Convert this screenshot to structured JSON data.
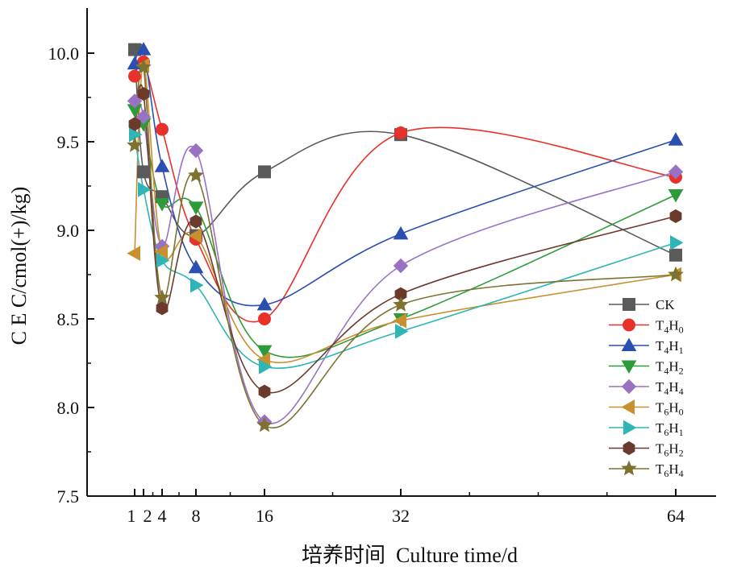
{
  "chart_data": {
    "type": "line",
    "xlabel": "培养时间  Culture time/d",
    "ylabel": "C E C/cmol(+)/kg)",
    "ylim": [
      7.5,
      10.25
    ],
    "yticks": [
      7.5,
      8.0,
      8.5,
      9.0,
      9.5,
      10.0
    ],
    "ytick_labels": [
      "7.5",
      "8.0",
      "8.5",
      "9.0",
      "9.5",
      "10.0"
    ],
    "xticks": [
      1,
      2,
      4,
      8,
      16,
      32,
      64
    ],
    "xtick_labels": [
      "1",
      "2",
      "4",
      "8",
      "16",
      "32",
      "64"
    ],
    "x": [
      1,
      2,
      4,
      8,
      16,
      32,
      64
    ],
    "legend_position": "bottom-right",
    "grid": false,
    "series": [
      {
        "name": "CK",
        "sub1": "",
        "sub2": "",
        "color": "#5a5a5a",
        "marker": "square",
        "values": [
          10.02,
          9.33,
          9.19,
          8.97,
          9.33,
          9.54,
          8.86
        ]
      },
      {
        "name": "T4H0",
        "base1": "T",
        "sub1": "4",
        "base2": "H",
        "sub2": "0",
        "color": "#e8312a",
        "marker": "circle",
        "values": [
          9.87,
          9.95,
          9.57,
          8.95,
          8.5,
          9.55,
          9.3
        ]
      },
      {
        "name": "T4H1",
        "base1": "T",
        "sub1": "4",
        "base2": "H",
        "sub2": "1",
        "color": "#2b4fb0",
        "marker": "triangle-up",
        "values": [
          9.94,
          10.02,
          9.36,
          8.79,
          8.58,
          8.98,
          9.51
        ]
      },
      {
        "name": "T4H2",
        "base1": "T",
        "sub1": "4",
        "base2": "H",
        "sub2": "2",
        "color": "#2e9b3a",
        "marker": "triangle-down",
        "values": [
          9.68,
          9.6,
          9.15,
          9.13,
          8.32,
          8.5,
          9.2
        ]
      },
      {
        "name": "T4H4",
        "base1": "T",
        "sub1": "4",
        "base2": "H",
        "sub2": "4",
        "color": "#9a72c4",
        "marker": "diamond",
        "values": [
          9.73,
          9.64,
          8.91,
          9.45,
          7.92,
          8.8,
          9.33
        ]
      },
      {
        "name": "T6H0",
        "base1": "T",
        "sub1": "6",
        "base2": "H",
        "sub2": "0",
        "color": "#c8902f",
        "marker": "triangle-left",
        "values": [
          8.87,
          9.93,
          8.88,
          8.97,
          8.27,
          8.49,
          8.75
        ]
      },
      {
        "name": "T6H1",
        "base1": "T",
        "sub1": "6",
        "base2": "H",
        "sub2": "1",
        "color": "#2fb5b5",
        "marker": "triangle-right",
        "values": [
          9.54,
          9.23,
          8.83,
          8.69,
          8.23,
          8.43,
          8.93
        ]
      },
      {
        "name": "T6H2",
        "base1": "T",
        "sub1": "6",
        "base2": "H",
        "sub2": "2",
        "color": "#6b3a2c",
        "marker": "hexagon",
        "values": [
          9.6,
          9.77,
          8.56,
          9.05,
          8.09,
          8.64,
          9.08
        ]
      },
      {
        "name": "T6H4",
        "base1": "T",
        "sub1": "6",
        "base2": "H",
        "sub2": "4",
        "color": "#7d7230",
        "marker": "star",
        "values": [
          9.48,
          9.92,
          8.62,
          9.31,
          7.9,
          8.58,
          8.75
        ]
      }
    ]
  }
}
